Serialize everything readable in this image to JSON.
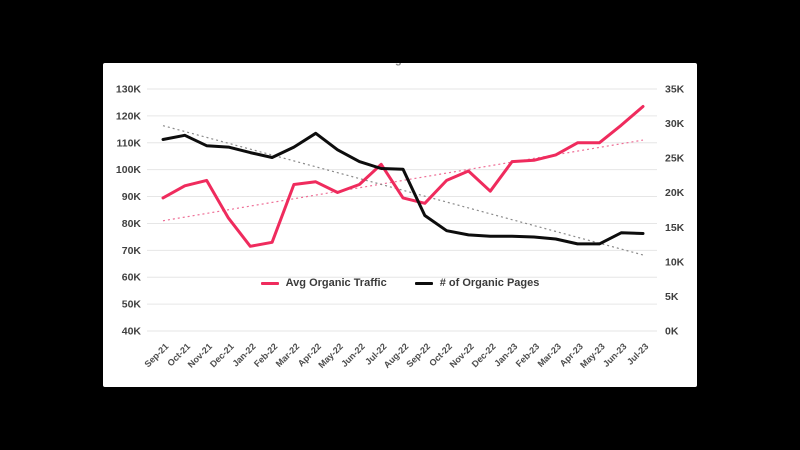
{
  "canvas": {
    "background_color": "#000000",
    "panel_color": "#ffffff",
    "gridline_color": "#e6e6e6",
    "accent_color": "#ef2b5d"
  },
  "clipped_title_fragment": "g",
  "legend": {
    "items": [
      {
        "label": "Avg Organic Traffic",
        "color": "#ef2b5d"
      },
      {
        "label": "# of Organic Pages",
        "color": "#0d0d0d"
      }
    ],
    "position": "bottom-center-inside-plot"
  },
  "chart_data": {
    "type": "line",
    "title": "",
    "xlabel": "",
    "ylabel": "",
    "grid": true,
    "categories": [
      "Sep-21",
      "Oct-21",
      "Nov-21",
      "Dec-21",
      "Jan-22",
      "Feb-22",
      "Mar-22",
      "Apr-22",
      "May-22",
      "Jun-22",
      "Jul-22",
      "Aug-22",
      "Sep-22",
      "Oct-22",
      "Nov-22",
      "Dec-22",
      "Jan-23",
      "Feb-23",
      "Mar-23",
      "Apr-23",
      "May-23",
      "Jun-23",
      "Jul-23"
    ],
    "unit": "thousands (K)",
    "left_axis": {
      "min": 40,
      "max": 130,
      "tick_labels": [
        "130K",
        "120K",
        "110K",
        "100K",
        "90K",
        "80K",
        "70K",
        "60K",
        "50K",
        "40K"
      ]
    },
    "right_axis": {
      "min": 0,
      "max": 35,
      "tick_labels": [
        "35K",
        "30K",
        "25K",
        "20K",
        "15K",
        "10K",
        "5K",
        "0K"
      ]
    },
    "series": [
      {
        "name": "Avg Organic Traffic",
        "axis": "left",
        "color": "#ef2b5d",
        "line_width": 3,
        "values": [
          89.5,
          94,
          96,
          82,
          71.5,
          73,
          94.5,
          95.5,
          91.5,
          94.5,
          102,
          89.5,
          87.5,
          96,
          99.5,
          92,
          103,
          103.5,
          105.5,
          110,
          110,
          116.5,
          123.5
        ]
      },
      {
        "name": "# of Organic Pages",
        "axis": "right",
        "color": "#0d0d0d",
        "line_width": 3,
        "values": [
          27.7,
          28.3,
          26.8,
          26.6,
          25.8,
          25.1,
          26.6,
          28.6,
          26.2,
          24.5,
          23.5,
          23.4,
          16.7,
          14.5,
          13.9,
          13.7,
          13.7,
          13.6,
          13.3,
          12.6,
          12.6,
          14.2,
          14.1
        ]
      }
    ],
    "trendlines": [
      {
        "series": "Avg Organic Traffic",
        "axis": "left",
        "start_value": 81,
        "end_value": 111,
        "color": "#ee6e96",
        "style": "dotted"
      },
      {
        "series": "# of Organic Pages",
        "axis": "right",
        "start_value": 29.7,
        "end_value": 11,
        "color": "#8a8a8a",
        "style": "dotted"
      }
    ]
  }
}
